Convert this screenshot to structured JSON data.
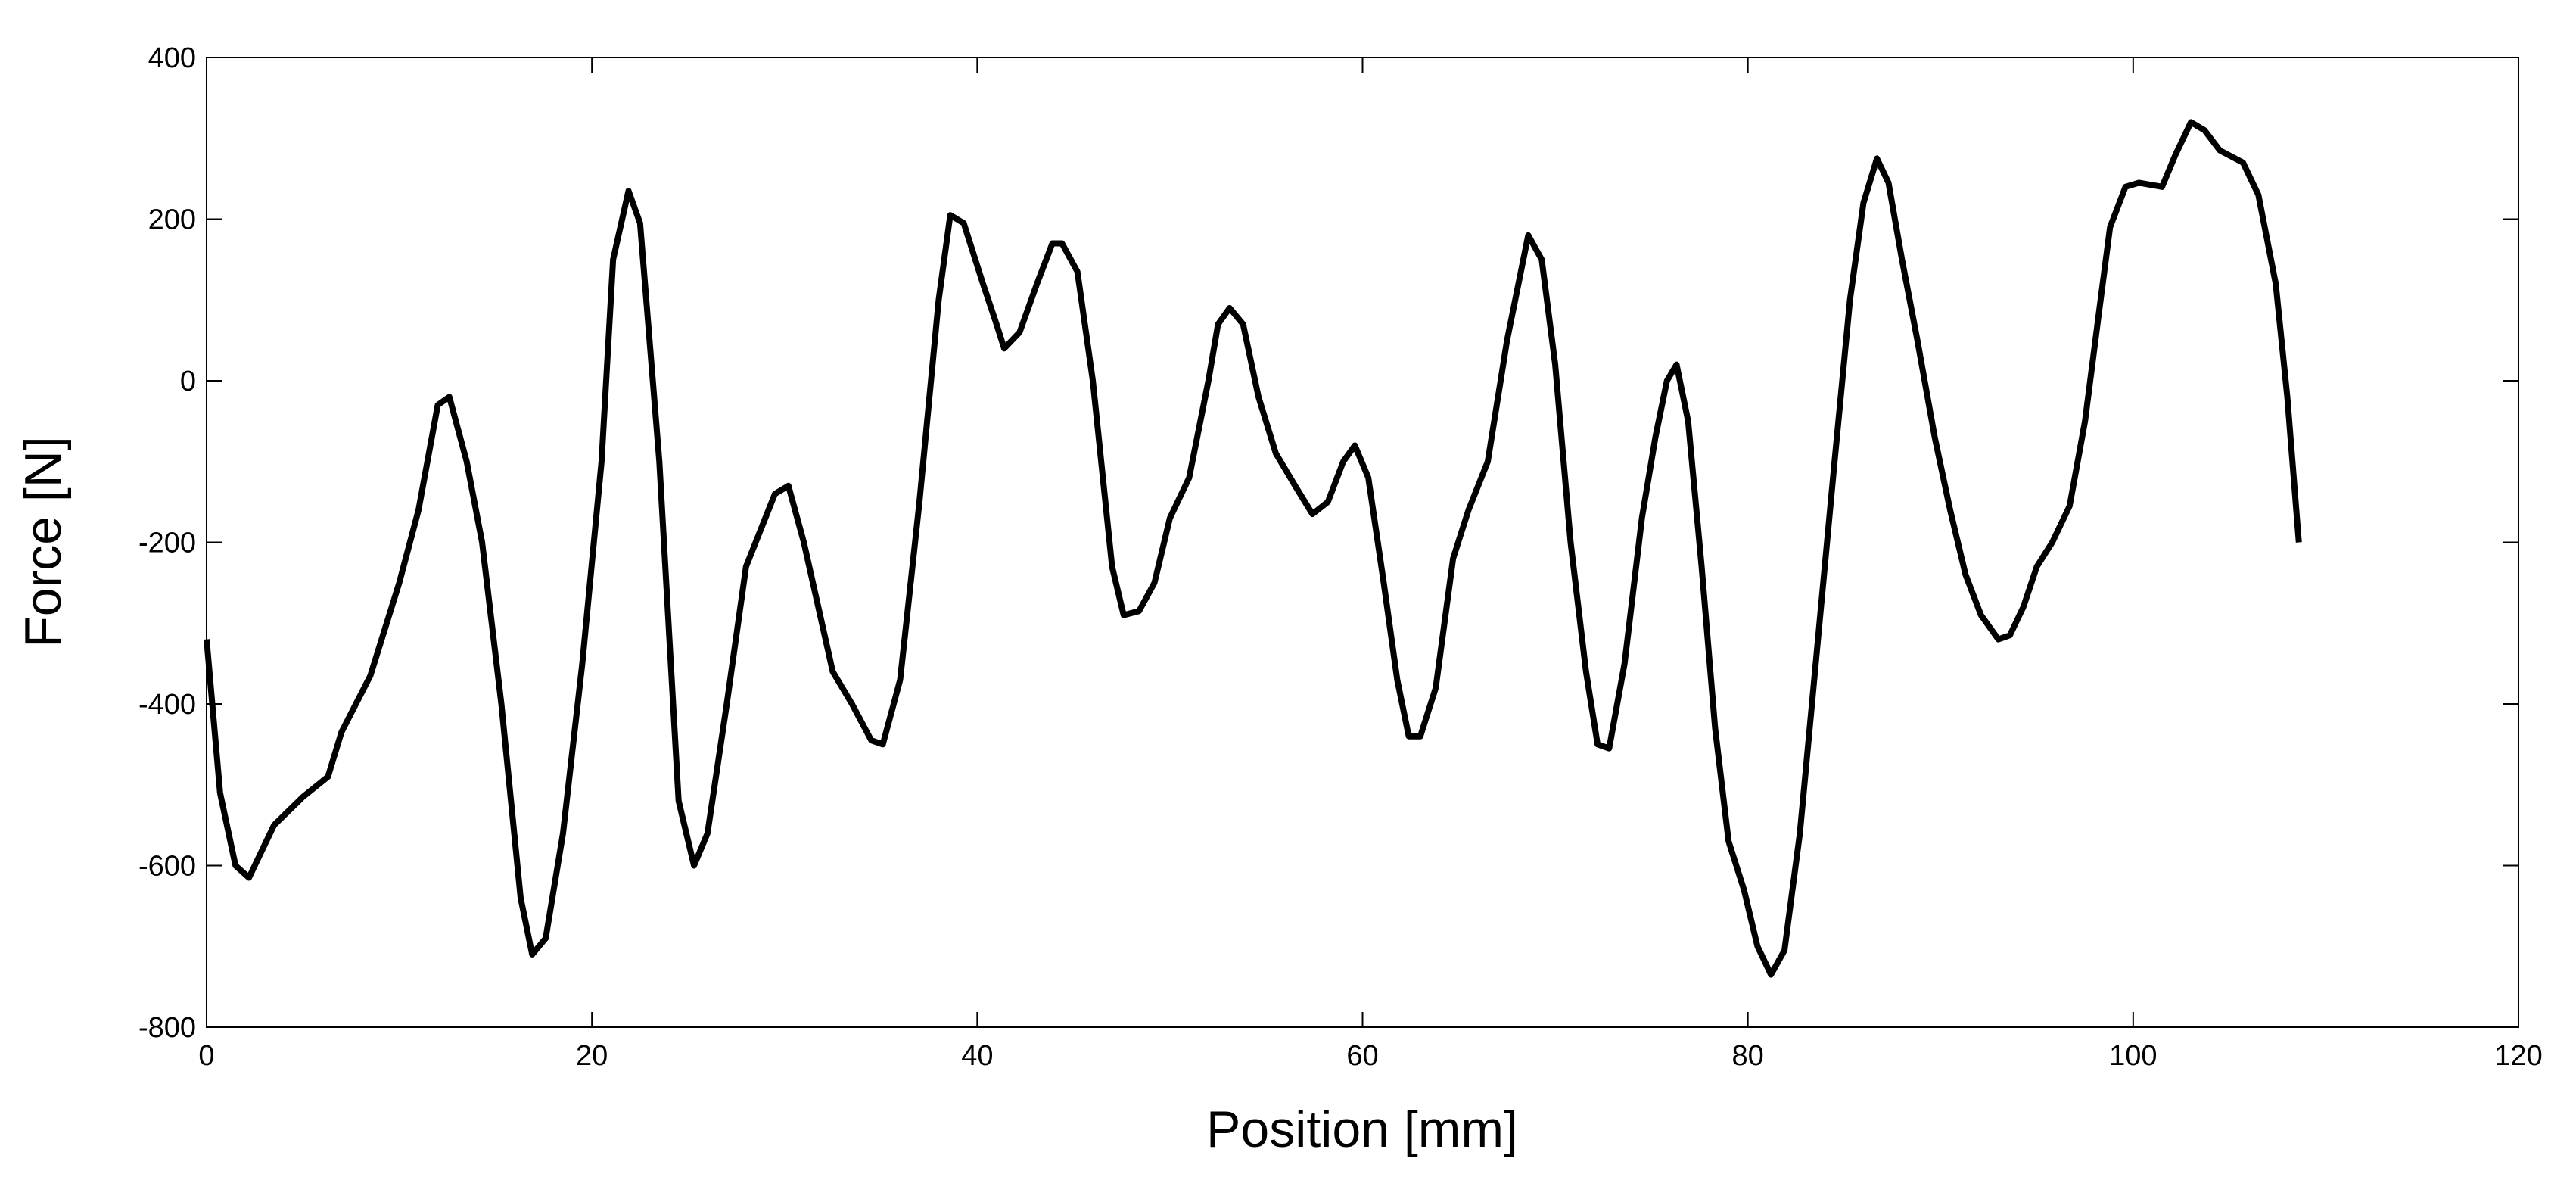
{
  "chart_data": {
    "type": "line",
    "xlabel": "Position [mm]",
    "ylabel": "Force [N]",
    "xlim": [
      0,
      120
    ],
    "ylim": [
      -800,
      400
    ],
    "xticks": [
      0,
      20,
      40,
      60,
      80,
      100,
      120
    ],
    "yticks": [
      -800,
      -600,
      -400,
      -200,
      0,
      200,
      400
    ],
    "grid": false,
    "series": [
      {
        "name": "Force",
        "color": "#000000",
        "x": [
          0,
          0.7,
          1.5,
          2.2,
          3.5,
          5,
          6.3,
          7,
          8.5,
          10,
          11,
          12,
          12.6,
          13.5,
          14.3,
          15.3,
          16.3,
          16.9,
          17.6,
          18.5,
          19.5,
          20.5,
          21.1,
          21.9,
          22.5,
          23.5,
          24.5,
          25.3,
          26,
          27,
          28,
          29.5,
          30.2,
          31,
          32.5,
          33.5,
          34.5,
          35.1,
          36,
          37,
          38,
          38.6,
          39.3,
          40.3,
          41,
          41.4,
          42.2,
          43.1,
          43.9,
          44.4,
          45.2,
          46,
          47,
          47.6,
          48.4,
          49.2,
          50,
          51,
          52,
          52.5,
          53.1,
          53.8,
          54.6,
          55.5,
          56.5,
          57.4,
          58.2,
          59,
          59.6,
          60.3,
          61.1,
          61.8,
          62.4,
          63,
          63.8,
          64.7,
          65.5,
          66.5,
          67.5,
          68.6,
          69.3,
          70,
          70.8,
          71.6,
          72.2,
          72.8,
          73.6,
          74.5,
          75.2,
          75.8,
          76.3,
          76.9,
          77.6,
          78.3,
          79,
          79.8,
          80.5,
          81.2,
          81.9,
          82.7,
          83.6,
          84.5,
          85.3,
          86,
          86.7,
          87.3,
          88,
          88.8,
          89.7,
          90.5,
          91.3,
          92.1,
          93,
          93.6,
          94.3,
          95,
          95.8,
          96.7,
          97.5,
          98.2,
          98.8,
          99.6,
          100.3,
          101.5,
          102.2,
          103,
          103.7,
          104.5,
          105.7,
          106.5,
          107.4,
          108,
          108.6
        ],
        "values": [
          -320,
          -510,
          -600,
          -615,
          -550,
          -515,
          -490,
          -435,
          -365,
          -250,
          -160,
          -30,
          -20,
          -100,
          -200,
          -400,
          -640,
          -710,
          -690,
          -560,
          -350,
          -100,
          150,
          235,
          195,
          -100,
          -520,
          -600,
          -560,
          -400,
          -230,
          -140,
          -130,
          -200,
          -360,
          -400,
          -445,
          -450,
          -370,
          -150,
          100,
          205,
          195,
          120,
          70,
          40,
          60,
          120,
          170,
          170,
          135,
          0,
          -230,
          -290,
          -285,
          -250,
          -170,
          -120,
          0,
          70,
          90,
          70,
          -20,
          -90,
          -130,
          -165,
          -150,
          -100,
          -80,
          -120,
          -250,
          -370,
          -440,
          -440,
          -380,
          -220,
          -160,
          -100,
          50,
          180,
          150,
          20,
          -200,
          -360,
          -450,
          -455,
          -350,
          -170,
          -70,
          0,
          20,
          -50,
          -230,
          -430,
          -570,
          -630,
          -700,
          -735,
          -705,
          -560,
          -330,
          -100,
          100,
          220,
          275,
          245,
          150,
          50,
          -70,
          -160,
          -240,
          -290,
          -320,
          -315,
          -280,
          -230,
          -200,
          -155,
          -50,
          80,
          190,
          240,
          245,
          240,
          280,
          320,
          310,
          285,
          270,
          230,
          120,
          -20,
          -200
        ]
      }
    ]
  }
}
